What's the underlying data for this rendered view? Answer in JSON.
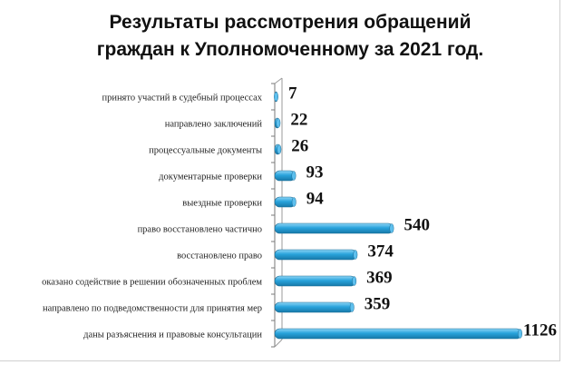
{
  "chart_data": {
    "type": "bar",
    "orientation": "horizontal",
    "title": "Результаты рассмотрения обращений\nграждан к Уполномоченному за 2021 год.",
    "categories": [
      "принято участий в судебный процессах",
      "направлено заключений",
      "процессуальные документы",
      "документарные проверки",
      "выездные проверки",
      "право восстановлено  частично",
      "восстановлено  право",
      "оказано содействие  в решении  обозначенных  проблем",
      "направлено по подведомственности  для принятия мер",
      "даны разъяснения и правовые консультации"
    ],
    "values": [
      7,
      22,
      26,
      93,
      94,
      540,
      374,
      369,
      359,
      1126
    ],
    "data_labels": [
      "7",
      "22",
      "26",
      "93",
      "94",
      "540",
      "374",
      "369",
      "359",
      "1126"
    ],
    "xlim": [
      0,
      1126
    ],
    "grid": false,
    "legend": "none",
    "bar_color": "#29a3dc"
  }
}
